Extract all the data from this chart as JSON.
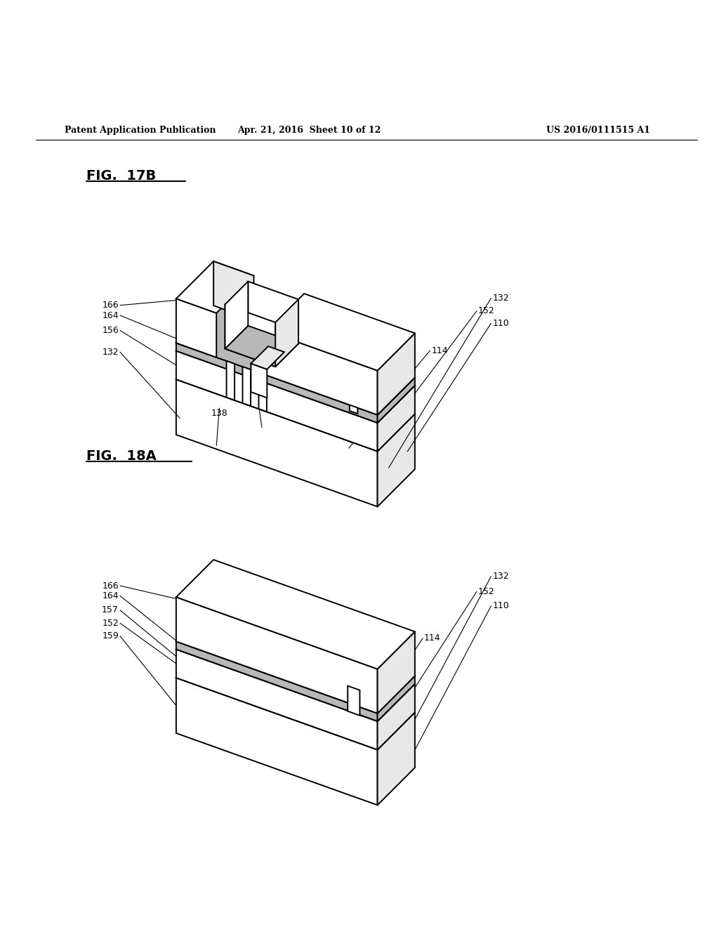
{
  "background_color": "#ffffff",
  "header_left": "Patent Application Publication",
  "header_center": "Apr. 21, 2016  Sheet 10 of 12",
  "header_right": "US 2016/0111515 A1",
  "fig1_label": "FIG.  17B",
  "fig2_label": "FIG.  18A"
}
